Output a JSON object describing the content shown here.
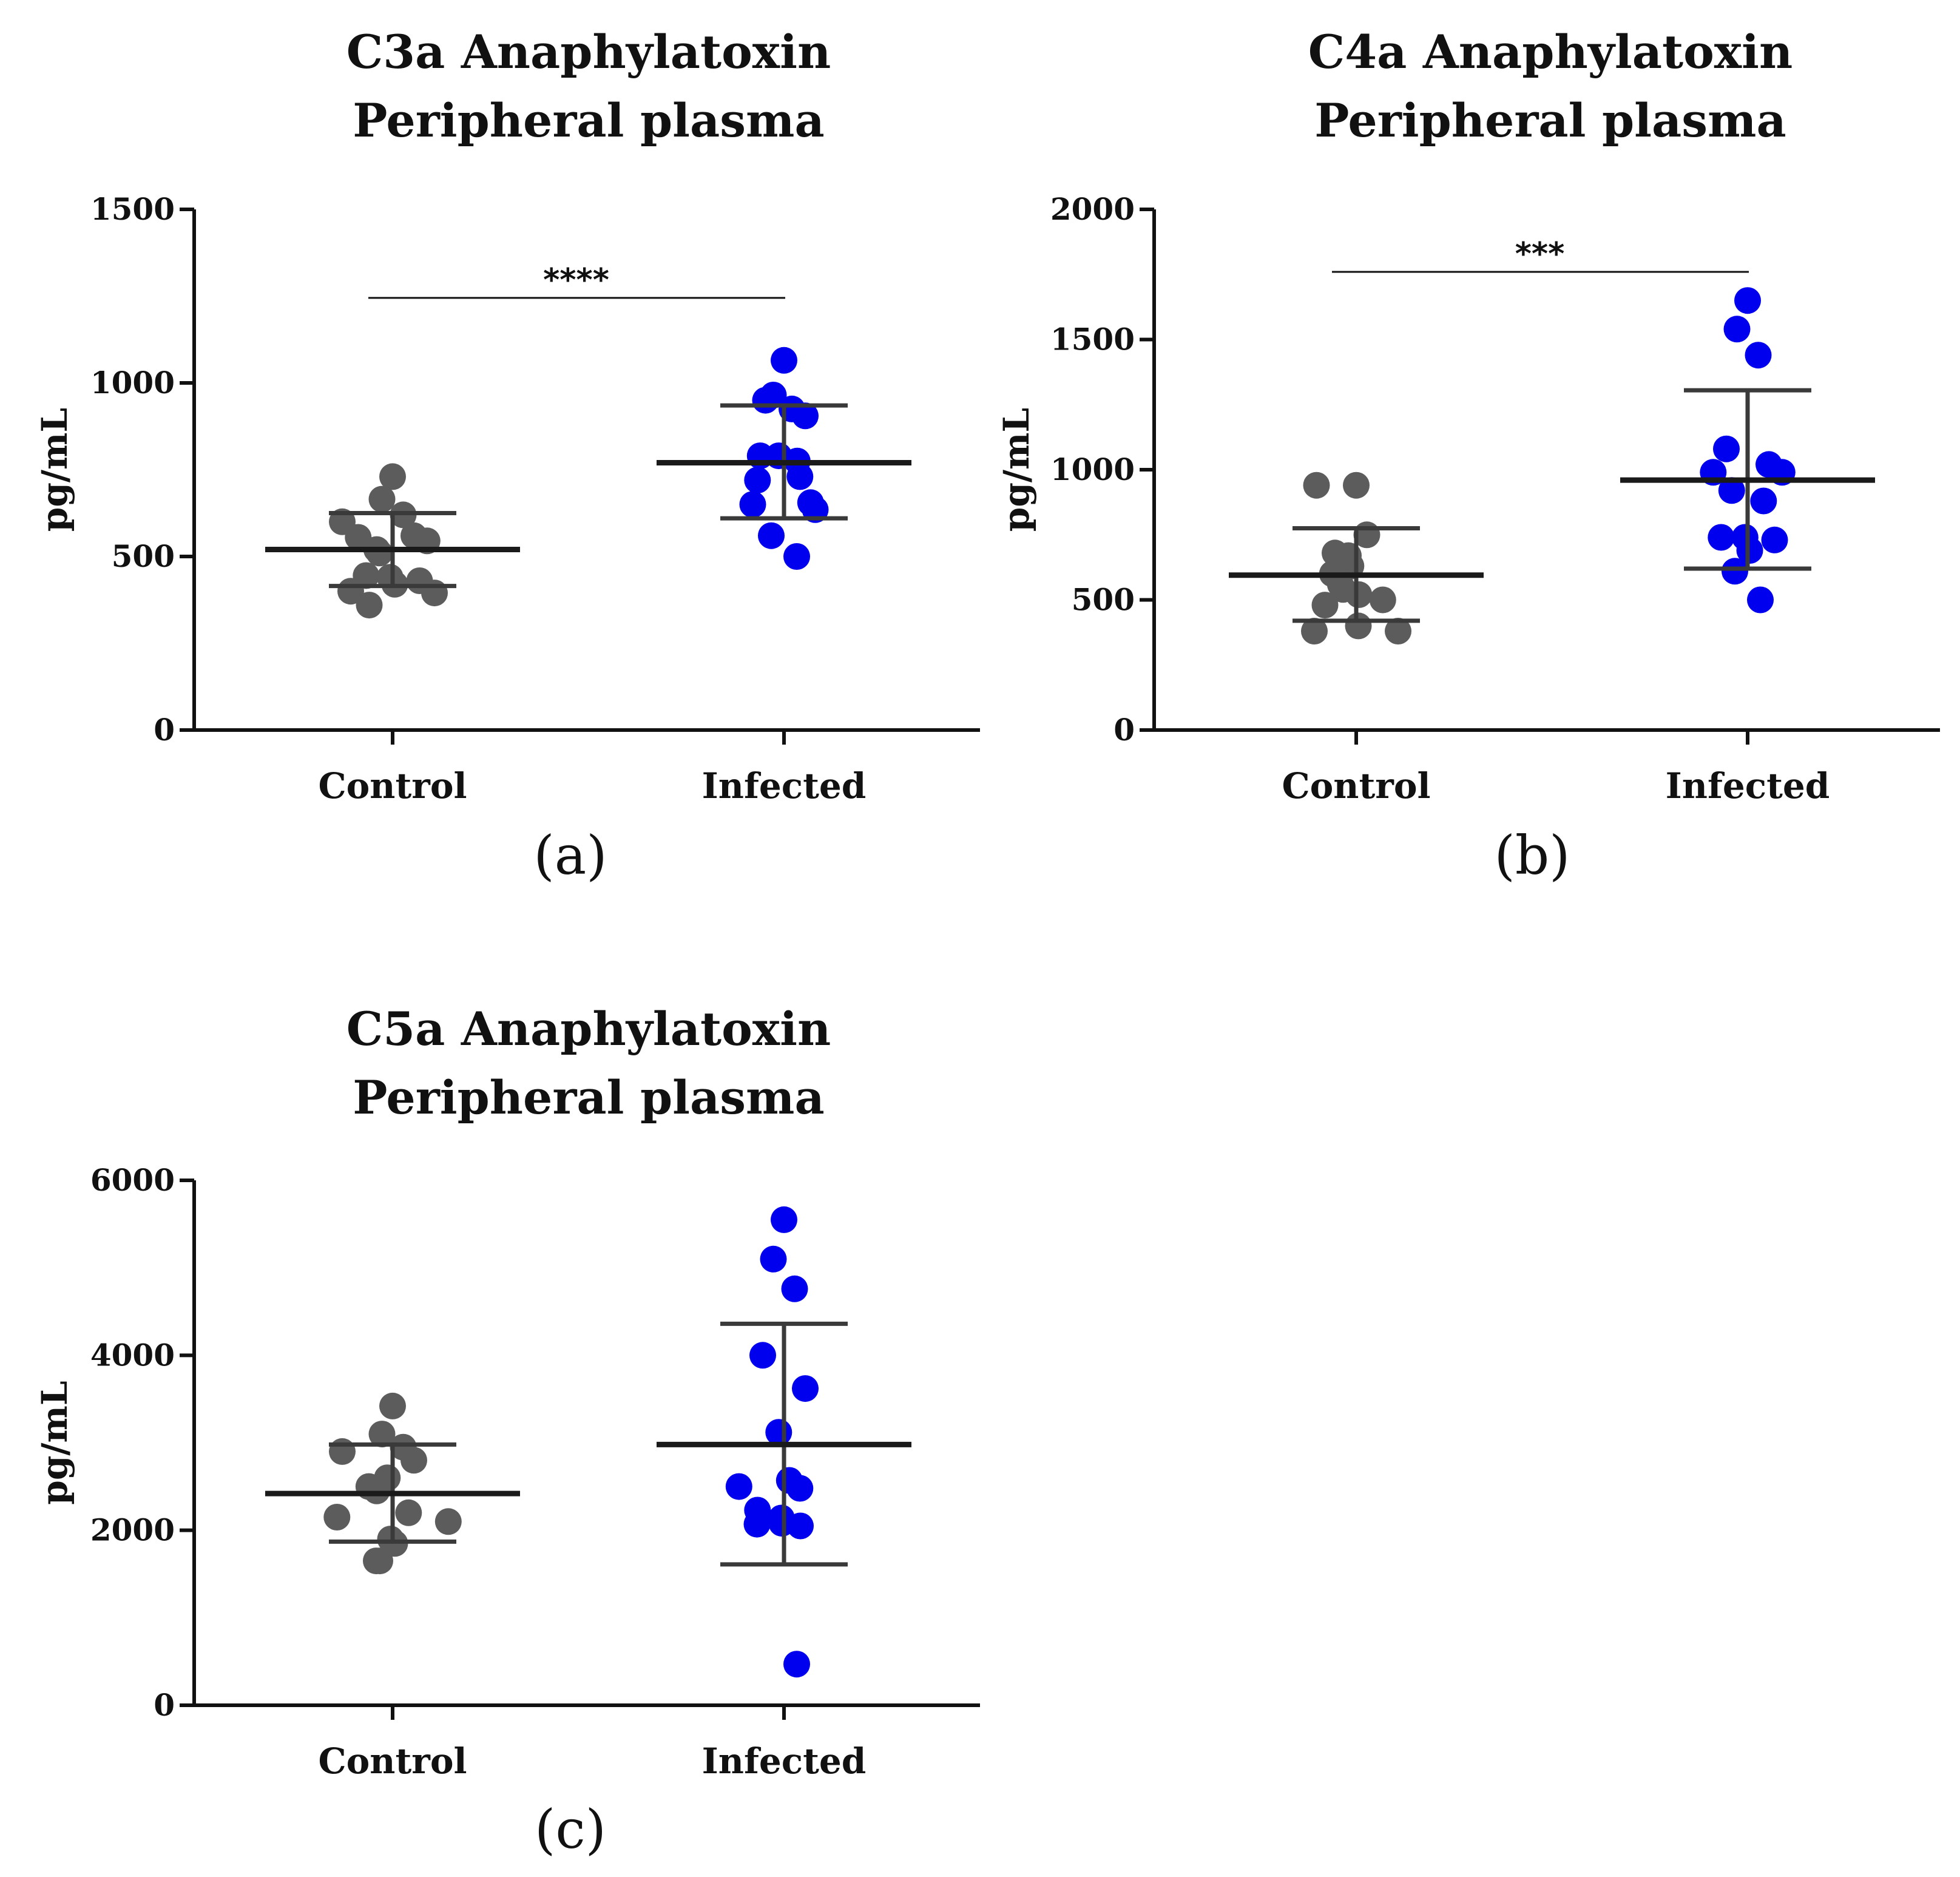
{
  "colors": {
    "control": "#5c5c5c",
    "infected": "#0000ee",
    "axis": "#111111"
  },
  "chart_data": [
    {
      "type": "scatter",
      "panel_label": "(a)",
      "title": [
        "C3a Anaphylatoxin",
        "Peripheral plasma"
      ],
      "xlabel": "",
      "ylabel": "pg/mL",
      "categories": [
        "Control",
        "Infected"
      ],
      "ylim": [
        0,
        1500
      ],
      "yticks": [
        0,
        500,
        1000,
        1500
      ],
      "series": [
        {
          "name": "Control",
          "values": [
            730,
            665,
            620,
            600,
            560,
            555,
            545,
            520,
            510,
            445,
            440,
            430,
            420,
            400,
            395,
            360
          ],
          "mean": 520,
          "sd_upper": 625,
          "sd_lower": 415
        },
        {
          "name": "Infected",
          "values": [
            1065,
            965,
            950,
            925,
            905,
            790,
            790,
            775,
            730,
            720,
            655,
            650,
            635,
            560,
            500
          ],
          "mean": 770,
          "sd_upper": 935,
          "sd_lower": 610
        }
      ],
      "significance": {
        "label": "****",
        "y": 1245
      }
    },
    {
      "type": "scatter",
      "panel_label": "(b)",
      "title": [
        "C4a Anaphylatoxin",
        "Peripheral plasma"
      ],
      "xlabel": "",
      "ylabel": "pg/mL",
      "categories": [
        "Control",
        "Infected"
      ],
      "ylim": [
        0,
        2000
      ],
      "yticks": [
        0,
        500,
        1000,
        1500,
        2000
      ],
      "series": [
        {
          "name": "Control",
          "values": [
            940,
            940,
            750,
            680,
            670,
            630,
            600,
            560,
            540,
            520,
            500,
            480,
            400,
            380,
            380
          ],
          "mean": 595,
          "sd_upper": 775,
          "sd_lower": 420
        },
        {
          "name": "Infected",
          "values": [
            1650,
            1540,
            1440,
            1080,
            1020,
            990,
            990,
            920,
            880,
            740,
            740,
            730,
            690,
            610,
            500
          ],
          "mean": 960,
          "sd_upper": 1305,
          "sd_lower": 620
        }
      ],
      "significance": {
        "label": "***",
        "y": 1760
      }
    },
    {
      "type": "scatter",
      "panel_label": "(c)",
      "title": [
        "C5a Anaphylatoxin",
        "Peripheral plasma"
      ],
      "xlabel": "",
      "ylabel": "pg/mL",
      "categories": [
        "Control",
        "Infected"
      ],
      "ylim": [
        0,
        6000
      ],
      "yticks": [
        0,
        2000,
        4000,
        6000
      ],
      "series": [
        {
          "name": "Control",
          "values": [
            3420,
            3100,
            2950,
            2900,
            2800,
            2600,
            2500,
            2450,
            2200,
            2150,
            2100,
            1900,
            1850,
            1650,
            1650
          ],
          "mean": 2420,
          "sd_upper": 2980,
          "sd_lower": 1870
        },
        {
          "name": "Infected",
          "values": [
            5550,
            5100,
            4760,
            4000,
            3620,
            3120,
            2570,
            2500,
            2480,
            2230,
            2140,
            2080,
            2070,
            2050,
            470
          ],
          "mean": 2980,
          "sd_upper": 4360,
          "sd_lower": 1610
        }
      ],
      "significance": null
    }
  ]
}
